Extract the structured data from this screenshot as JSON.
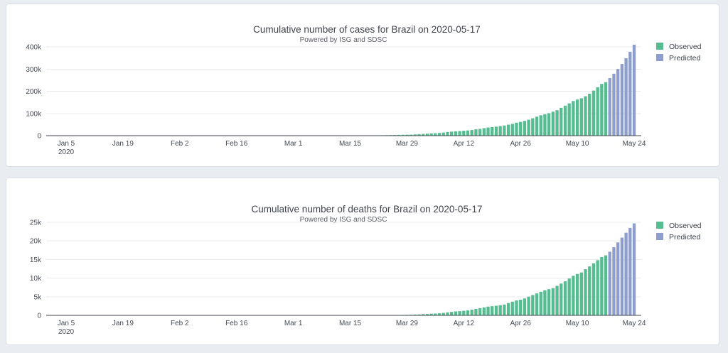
{
  "page": {
    "background_color": "#e9edf2",
    "panel_background": "#ffffff",
    "panel_border_color": "#d9dee6"
  },
  "colors": {
    "observed": "#55bd90",
    "predicted": "#8c9dce",
    "axis_line": "#42464d",
    "gridline": "#e9ebef",
    "title_text": "#3f434a",
    "subtitle_text": "#5b5f66",
    "tick_text": "#444a52",
    "legend_text": "#3c4049"
  },
  "chart_data": [
    {
      "type": "bar",
      "title": "Cumulative number of cases for Brazil on 2020-05-17",
      "subtitle": "Powered by ISG and SDSC",
      "x_axis_start_date": "2020-01-05",
      "x_tick_labels": [
        "Jan 5",
        "Jan 19",
        "Feb 2",
        "Feb 16",
        "Mar 1",
        "Mar 15",
        "Mar 29",
        "Apr 12",
        "Apr 26",
        "May 10",
        "May 24"
      ],
      "x_first_tick_second_line": "2020",
      "x_tick_interval_days": 14,
      "y_ticks": [
        {
          "label": "0",
          "value": 0
        },
        {
          "label": "100k",
          "value": 100000
        },
        {
          "label": "200k",
          "value": 200000
        },
        {
          "label": "300k",
          "value": 300000
        },
        {
          "label": "400k",
          "value": 400000
        }
      ],
      "ylim": [
        0,
        430000
      ],
      "grid": "horizontal",
      "legend_position": "right",
      "series": [
        {
          "name": "Observed",
          "color": "#55bd90",
          "start_date": "2020-02-26",
          "start_day_index": 52,
          "values": [
            1,
            1,
            1,
            2,
            2,
            2,
            2,
            4,
            8,
            13,
            19,
            25,
            25,
            34,
            52,
            77,
            98,
            121,
            200,
            234,
            321,
            372,
            621,
            793,
            1128,
            1546,
            1924,
            2247,
            2554,
            2985,
            3417,
            3904,
            4256,
            4579,
            5717,
            6836,
            8044,
            9056,
            10360,
            11130,
            12161,
            14034,
            16170,
            18092,
            19638,
            20727,
            22169,
            23430,
            25262,
            28320,
            30425,
            33682,
            36599,
            38654,
            40581,
            43079,
            45757,
            49492,
            52995,
            58509,
            61888,
            66501,
            71886,
            78162,
            85380,
            91589,
            96559,
            101147,
            107780,
            114715,
            125218,
            135106,
            145328,
            155939,
            162699,
            168331,
            177589,
            188974,
            202918,
            218223,
            233142,
            241080
          ]
        },
        {
          "name": "Predicted",
          "color": "#8c9dce",
          "start_date": "2020-05-18",
          "start_day_index": 134,
          "values": [
            259000,
            279000,
            300000,
            323000,
            349000,
            378000,
            410000
          ]
        }
      ]
    },
    {
      "type": "bar",
      "title": "Cumulative number of deaths for Brazil on 2020-05-17",
      "subtitle": "Powered by ISG and SDSC",
      "x_axis_start_date": "2020-01-05",
      "x_tick_labels": [
        "Jan 5",
        "Jan 19",
        "Feb 2",
        "Feb 16",
        "Mar 1",
        "Mar 15",
        "Mar 29",
        "Apr 12",
        "Apr 26",
        "May 10",
        "May 24"
      ],
      "x_first_tick_second_line": "2020",
      "x_tick_interval_days": 14,
      "y_ticks": [
        {
          "label": "0",
          "value": 0
        },
        {
          "label": "5k",
          "value": 5000
        },
        {
          "label": "10k",
          "value": 10000
        },
        {
          "label": "15k",
          "value": 15000
        },
        {
          "label": "20k",
          "value": 20000
        },
        {
          "label": "25k",
          "value": 25000
        }
      ],
      "ylim": [
        0,
        26000
      ],
      "grid": "horizontal",
      "legend_position": "right",
      "series": [
        {
          "name": "Observed",
          "color": "#55bd90",
          "start_date": "2020-02-26",
          "start_day_index": 52,
          "values": [
            0,
            0,
            0,
            0,
            0,
            0,
            0,
            0,
            0,
            0,
            0,
            0,
            0,
            0,
            0,
            0,
            0,
            0,
            0,
            0,
            1,
            3,
            6,
            11,
            15,
            25,
            34,
            46,
            59,
            77,
            92,
            111,
            136,
            159,
            201,
            240,
            324,
            359,
            445,
            486,
            553,
            667,
            800,
            941,
            1056,
            1124,
            1223,
            1328,
            1532,
            1736,
            1924,
            2141,
            2354,
            2462,
            2575,
            2741,
            2906,
            3313,
            3670,
            4016,
            4205,
            4543,
            5017,
            5466,
            5901,
            6329,
            6750,
            7025,
            7321,
            7921,
            8536,
            9146,
            9897,
            10627,
            11123,
            11519,
            12400,
            13149,
            13993,
            14817,
            15633,
            16118
          ]
        },
        {
          "name": "Predicted",
          "color": "#8c9dce",
          "start_date": "2020-05-18",
          "start_day_index": 134,
          "values": [
            17100,
            18300,
            19600,
            20900,
            22200,
            23500,
            24700
          ]
        }
      ]
    }
  ]
}
